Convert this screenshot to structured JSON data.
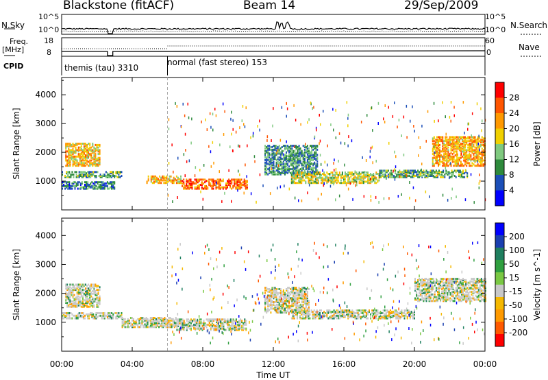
{
  "header": {
    "station": "Blackstone (fitACF)",
    "beam": "Beam 14",
    "date": "29/Sep/2009"
  },
  "strip_labels": {
    "nsky": "N.Sky",
    "nsearch": "N.Search",
    "freq_line1": "Freq.",
    "freq_line2": "[MHz]",
    "nave": "Nave",
    "cpid": "CPID"
  },
  "strip_ticks": {
    "noise_left": [
      "10^5",
      "10^0"
    ],
    "noise_right": [
      "10^5",
      "10^0"
    ],
    "freq_left": [
      "18",
      "8"
    ],
    "nave_right": [
      "60",
      "0"
    ]
  },
  "cpid_segments": [
    {
      "name": "themis (tau) 3310",
      "start": 0.0,
      "end": 6.0
    },
    {
      "name": "normal (fast stereo) 153",
      "start": 6.0,
      "end": 24.0
    }
  ],
  "colors": {
    "power": [
      "#0000ff",
      "#1c4fb8",
      "#2e8a3c",
      "#7fc97f",
      "#f0d000",
      "#ff9900",
      "#ff5500",
      "#ff0000"
    ],
    "velocity": [
      "#ff0000",
      "#ff5a00",
      "#ff9a00",
      "#f5b800",
      "#c8c8c8",
      "#7ac843",
      "#2f9f3f",
      "#1f7f5f",
      "#1a3fb0",
      "#0000ff"
    ],
    "trace": "#000000",
    "ground_scatter": "#b4b4b4"
  },
  "chart_data": [
    {
      "type": "heatmap",
      "name": "power",
      "ylabel": "Slant Range [km]",
      "yticks": [
        "1000",
        "2000",
        "3000",
        "4000"
      ],
      "ylim": [
        0,
        4600
      ],
      "xlim": [
        0,
        24
      ],
      "colorbar_label": "Power [dB]",
      "colorbar_ticks": [
        "4",
        "8",
        "12",
        "16",
        "20",
        "24",
        "28"
      ],
      "colorbar_range": [
        0,
        32
      ],
      "regions": [
        {
          "t0": 0.2,
          "t1": 2.2,
          "r0": 1500,
          "r1": 2300,
          "level": 0.55
        },
        {
          "t0": 0.0,
          "t1": 3.4,
          "r0": 1100,
          "r1": 1300,
          "level": 0.3
        },
        {
          "t0": 0.0,
          "t1": 3.0,
          "r0": 700,
          "r1": 950,
          "level": 0.2
        },
        {
          "t0": 4.8,
          "t1": 6.8,
          "r0": 900,
          "r1": 1150,
          "level": 0.55
        },
        {
          "t0": 6.8,
          "t1": 10.5,
          "r0": 700,
          "r1": 1050,
          "level": 0.7
        },
        {
          "t0": 11.5,
          "t1": 14.5,
          "r0": 1200,
          "r1": 2200,
          "level": 0.25
        },
        {
          "t0": 13.0,
          "t1": 18.0,
          "r0": 900,
          "r1": 1300,
          "level": 0.45
        },
        {
          "t0": 18.0,
          "t1": 23.0,
          "r0": 1100,
          "r1": 1350,
          "level": 0.3
        },
        {
          "t0": 21.0,
          "t1": 24.0,
          "r0": 1500,
          "r1": 2500,
          "level": 0.6
        }
      ]
    },
    {
      "type": "heatmap",
      "name": "velocity",
      "ylabel": "Slant Range [km]",
      "yticks": [
        "1000",
        "2000",
        "3000",
        "4000"
      ],
      "ylim": [
        0,
        4600
      ],
      "xlim": [
        0,
        24
      ],
      "colorbar_label": "Velocity [m s^-1]",
      "colorbar_ticks": [
        "-200",
        "-100",
        "-50",
        "-15",
        "15",
        "50",
        "100",
        "200"
      ],
      "colorbar_range": [
        -250,
        250
      ],
      "regions": [
        {
          "t0": 0.2,
          "t1": 2.2,
          "r0": 1500,
          "r1": 2300,
          "level": 0.45
        },
        {
          "t0": 0.0,
          "t1": 3.4,
          "r0": 1100,
          "r1": 1300,
          "level": 0.5
        },
        {
          "t0": 3.4,
          "t1": 6.5,
          "r0": 800,
          "r1": 1150,
          "level": 0.3
        },
        {
          "t0": 6.5,
          "t1": 10.5,
          "r0": 700,
          "r1": 1100,
          "level": 0.45
        },
        {
          "t0": 11.5,
          "t1": 14.0,
          "r0": 1300,
          "r1": 2200,
          "level": 0.3
        },
        {
          "t0": 13.0,
          "t1": 20.0,
          "r0": 1100,
          "r1": 1400,
          "level": 0.45
        },
        {
          "t0": 20.0,
          "t1": 24.0,
          "r0": 1700,
          "r1": 2500,
          "level": 0.45
        }
      ]
    }
  ],
  "xaxis": {
    "label": "Time UT",
    "ticks": [
      "00:00",
      "04:00",
      "08:00",
      "12:00",
      "16:00",
      "20:00",
      "00:00"
    ],
    "tick_hours": [
      0,
      4,
      8,
      12,
      16,
      20,
      24
    ]
  }
}
